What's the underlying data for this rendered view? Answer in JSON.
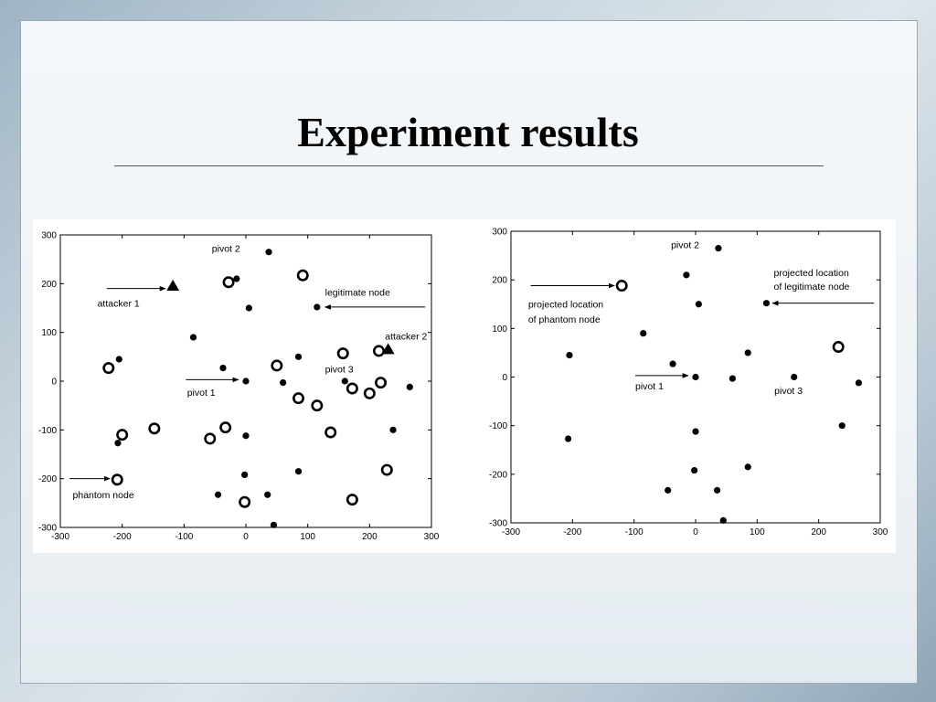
{
  "title": "Experiment results",
  "chart_data": [
    {
      "type": "scatter",
      "xlim": [
        -300,
        300
      ],
      "ylim": [
        -300,
        300
      ],
      "xticks": [
        -300,
        -200,
        -100,
        0,
        100,
        200,
        300
      ],
      "yticks": [
        -300,
        -200,
        -100,
        0,
        100,
        200,
        300
      ],
      "grid": false,
      "series": [
        {
          "name": "legitimate node",
          "marker": "filled-circle",
          "points": [
            [
              37,
              265
            ],
            [
              -15,
              210
            ],
            [
              5,
              150
            ],
            [
              -85,
              90
            ],
            [
              -37,
              27
            ],
            [
              0,
              0
            ],
            [
              85,
              50
            ],
            [
              60,
              -3
            ],
            [
              160,
              0
            ],
            [
              115,
              152
            ],
            [
              265,
              -12
            ],
            [
              238,
              -100
            ],
            [
              -205,
              45
            ],
            [
              -207,
              -127
            ],
            [
              0,
              -112
            ],
            [
              -2,
              -192
            ],
            [
              -45,
              -233
            ],
            [
              35,
              -233
            ],
            [
              85,
              -185
            ],
            [
              45,
              -295
            ]
          ]
        },
        {
          "name": "phantom node",
          "marker": "open-circle",
          "points": [
            [
              -222,
              27
            ],
            [
              -200,
              -110
            ],
            [
              -148,
              -97
            ],
            [
              -208,
              -202
            ],
            [
              -58,
              -118
            ],
            [
              -33,
              -95
            ],
            [
              -28,
              203
            ],
            [
              92,
              217
            ],
            [
              -2,
              -248
            ],
            [
              50,
              32
            ],
            [
              85,
              -35
            ],
            [
              115,
              -50
            ],
            [
              137,
              -105
            ],
            [
              157,
              57
            ],
            [
              172,
              -15
            ],
            [
              215,
              62
            ],
            [
              200,
              -25
            ],
            [
              218,
              -3
            ],
            [
              228,
              -182
            ],
            [
              172,
              -243
            ]
          ]
        },
        {
          "name": "attacker",
          "marker": "filled-triangle",
          "points": [
            [
              -118,
              195
            ],
            [
              230,
              65
            ]
          ]
        }
      ],
      "annotations": [
        {
          "text": "pivot 2",
          "label_at": [
            -55,
            265
          ],
          "target": [
            37,
            265
          ],
          "arrow": false
        },
        {
          "text": "attacker 1",
          "label_at": [
            -240,
            153
          ],
          "target": [
            -118,
            195
          ],
          "arrow": true,
          "arrow_from": [
            -225,
            190
          ],
          "arrow_to": [
            -130,
            190
          ]
        },
        {
          "text": "legitimate node",
          "label_at": [
            128,
            175
          ],
          "target": [
            115,
            152
          ],
          "arrow": true,
          "arrow_from": [
            290,
            152
          ],
          "arrow_to": [
            128,
            152
          ]
        },
        {
          "text": "attacker 2",
          "label_at": [
            225,
            85
          ],
          "target": [
            230,
            65
          ],
          "arrow": false
        },
        {
          "text": "pivot 3",
          "label_at": [
            128,
            18
          ],
          "target": [
            160,
            0
          ],
          "arrow": false
        },
        {
          "text": "pivot 1",
          "label_at": [
            -95,
            -30
          ],
          "target": [
            0,
            0
          ],
          "arrow": true,
          "arrow_from": [
            -97,
            3
          ],
          "arrow_to": [
            -12,
            3
          ]
        },
        {
          "text": "phantom node",
          "label_at": [
            -280,
            -240
          ],
          "target": [
            -208,
            -202
          ],
          "arrow": true,
          "arrow_from": [
            -285,
            -200
          ],
          "arrow_to": [
            -220,
            -200
          ]
        }
      ]
    },
    {
      "type": "scatter",
      "xlim": [
        -300,
        300
      ],
      "ylim": [
        -300,
        300
      ],
      "xticks": [
        -300,
        -200,
        -100,
        0,
        100,
        200,
        300
      ],
      "yticks": [
        -300,
        -200,
        -100,
        0,
        100,
        200,
        300
      ],
      "grid": false,
      "series": [
        {
          "name": "legitimate node",
          "marker": "filled-circle",
          "points": [
            [
              37,
              265
            ],
            [
              -15,
              210
            ],
            [
              5,
              150
            ],
            [
              -85,
              90
            ],
            [
              -37,
              27
            ],
            [
              0,
              0
            ],
            [
              85,
              50
            ],
            [
              60,
              -3
            ],
            [
              160,
              0
            ],
            [
              115,
              152
            ],
            [
              265,
              -12
            ],
            [
              238,
              -100
            ],
            [
              -205,
              45
            ],
            [
              -207,
              -127
            ],
            [
              0,
              -112
            ],
            [
              -2,
              -192
            ],
            [
              -45,
              -233
            ],
            [
              35,
              -233
            ],
            [
              85,
              -185
            ],
            [
              45,
              -295
            ]
          ]
        },
        {
          "name": "phantom node",
          "marker": "open-circle",
          "points": [
            [
              -120,
              188
            ],
            [
              232,
              62
            ]
          ]
        }
      ],
      "annotations": [
        {
          "text": "pivot 2",
          "label_at": [
            -40,
            265
          ],
          "target": [
            37,
            265
          ],
          "arrow": false
        },
        {
          "text": "projected location",
          "label_at": [
            -272,
            143
          ],
          "target": [
            -120,
            188
          ],
          "arrow": true,
          "arrow_from": [
            -268,
            188
          ],
          "arrow_to": [
            -132,
            188
          ]
        },
        {
          "text": "of phantom node",
          "label_at": [
            -272,
            112
          ],
          "target": [
            -120,
            188
          ],
          "arrow": false
        },
        {
          "text": "projected location",
          "label_at": [
            127,
            208
          ],
          "target": [
            115,
            152
          ],
          "arrow": true,
          "arrow_from": [
            290,
            152
          ],
          "arrow_to": [
            125,
            152
          ]
        },
        {
          "text": "of legitimate node",
          "label_at": [
            127,
            180
          ],
          "target": [
            115,
            152
          ],
          "arrow": false
        },
        {
          "text": "pivot 1",
          "label_at": [
            -98,
            -25
          ],
          "target": [
            0,
            0
          ],
          "arrow": true,
          "arrow_from": [
            -98,
            3
          ],
          "arrow_to": [
            -12,
            3
          ]
        },
        {
          "text": "pivot 3",
          "label_at": [
            128,
            -35
          ],
          "target": [
            160,
            0
          ],
          "arrow": false
        }
      ]
    }
  ]
}
